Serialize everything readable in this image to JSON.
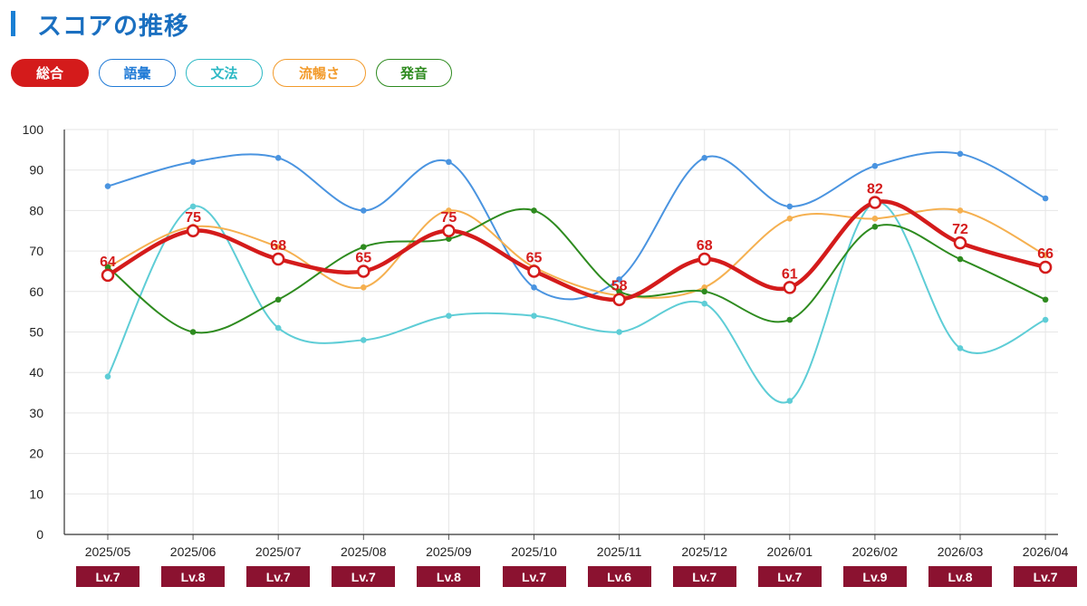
{
  "header": {
    "title": "スコアの推移"
  },
  "filters": [
    {
      "label": "総合",
      "color": "#d41b1b",
      "active": true
    },
    {
      "label": "語彙",
      "color": "#1f7ad6",
      "active": false
    },
    {
      "label": "文法",
      "color": "#2bb8c4",
      "active": false
    },
    {
      "label": "流暢さ",
      "color": "#f29a2a",
      "active": false
    },
    {
      "label": "発音",
      "color": "#2d8a1e",
      "active": false
    }
  ],
  "chart_data": {
    "type": "line",
    "categories": [
      "2025/05",
      "2025/06",
      "2025/07",
      "2025/08",
      "2025/09",
      "2025/10",
      "2025/11",
      "2025/12",
      "2026/01",
      "2026/02",
      "2026/03",
      "2026/04"
    ],
    "ylim": [
      0,
      100
    ],
    "yticks": [
      0,
      10,
      20,
      30,
      40,
      50,
      60,
      70,
      80,
      90,
      100
    ],
    "grid": true,
    "series": [
      {
        "name": "語彙",
        "color": "#4a94e0",
        "values": [
          86,
          92,
          93,
          80,
          92,
          61,
          63,
          93,
          81,
          91,
          94,
          83
        ]
      },
      {
        "name": "文法",
        "color": "#5ecdd6",
        "values": [
          39,
          81,
          51,
          48,
          54,
          54,
          50,
          57,
          33,
          82,
          46,
          53
        ]
      },
      {
        "name": "流暢さ",
        "color": "#f5b050",
        "values": [
          66,
          76,
          71,
          61,
          80,
          66,
          59,
          61,
          78,
          78,
          80,
          69
        ]
      },
      {
        "name": "発音",
        "color": "#2e8b1f",
        "values": [
          66,
          50,
          58,
          71,
          73,
          80,
          60,
          60,
          53,
          76,
          68,
          58
        ]
      },
      {
        "name": "総合",
        "color": "#d41b1b",
        "values": [
          64,
          75,
          68,
          65,
          75,
          65,
          58,
          68,
          61,
          82,
          72,
          66
        ]
      }
    ],
    "levels": [
      "Lv.7",
      "Lv.8",
      "Lv.7",
      "Lv.7",
      "Lv.8",
      "Lv.7",
      "Lv.6",
      "Lv.7",
      "Lv.7",
      "Lv.9",
      "Lv.8",
      "Lv.7"
    ]
  }
}
